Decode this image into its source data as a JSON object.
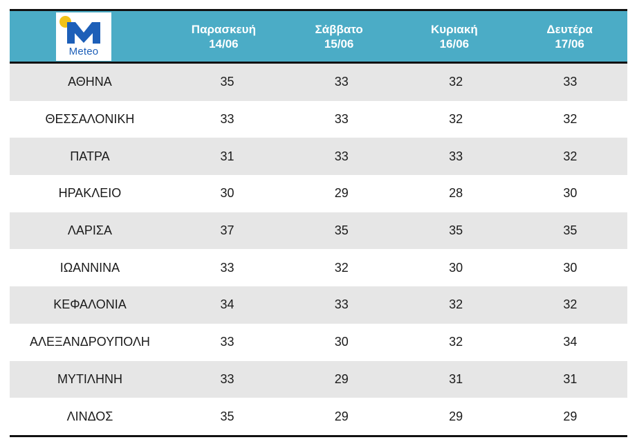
{
  "logo": {
    "text": "Meteo",
    "sun_color": "#f2c318",
    "mark_color": "#1d5fb8"
  },
  "colors": {
    "header_bg": "#4bacc6",
    "row_shade": "#e6e6e6"
  },
  "columns": [
    {
      "day": "Παρασκευή",
      "date": "14/06"
    },
    {
      "day": "Σάββατο",
      "date": "15/06"
    },
    {
      "day": "Κυριακή",
      "date": "16/06"
    },
    {
      "day": "Δευτέρα",
      "date": "17/06"
    }
  ],
  "rows": [
    {
      "city": "ΑΘΗΝΑ",
      "values": [
        "35",
        "33",
        "32",
        "33"
      ]
    },
    {
      "city": "ΘΕΣΣΑΛΟΝΙΚΗ",
      "values": [
        "33",
        "33",
        "32",
        "32"
      ]
    },
    {
      "city": "ΠΑΤΡΑ",
      "values": [
        "31",
        "33",
        "33",
        "32"
      ]
    },
    {
      "city": "ΗΡΑΚΛΕΙΟ",
      "values": [
        "30",
        "29",
        "28",
        "30"
      ]
    },
    {
      "city": "ΛΑΡΙΣΑ",
      "values": [
        "37",
        "35",
        "35",
        "35"
      ]
    },
    {
      "city": "ΙΩΑΝΝΙΝΑ",
      "values": [
        "33",
        "32",
        "30",
        "30"
      ]
    },
    {
      "city": "ΚΕΦΑΛΟΝΙΑ",
      "values": [
        "34",
        "33",
        "32",
        "32"
      ]
    },
    {
      "city": "ΑΛΕΞΑΝΔΡΟΥΠΟΛΗ",
      "values": [
        "33",
        "30",
        "32",
        "34"
      ]
    },
    {
      "city": "ΜΥΤΙΛΗΝΗ",
      "values": [
        "33",
        "29",
        "31",
        "31"
      ]
    },
    {
      "city": "ΛΙΝΔΟΣ",
      "values": [
        "35",
        "29",
        "29",
        "29"
      ]
    }
  ]
}
